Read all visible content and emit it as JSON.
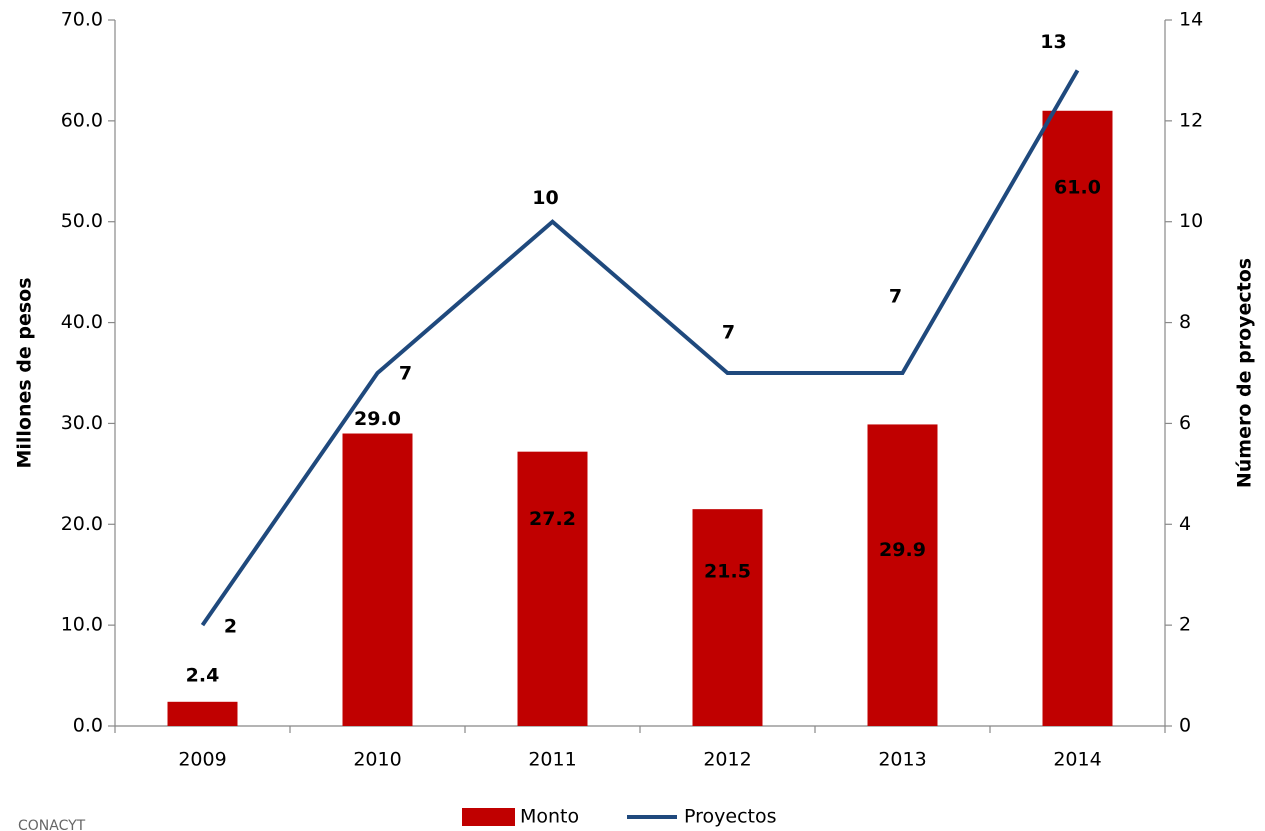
{
  "chart_data": {
    "type": "bar_line",
    "categories": [
      "2009",
      "2010",
      "2011",
      "2012",
      "2013",
      "2014"
    ],
    "series": [
      {
        "name": "Monto",
        "type": "bar",
        "color": "#c00000",
        "values": [
          2.4,
          29.0,
          27.2,
          21.5,
          29.9,
          61.0
        ],
        "value_labels": [
          "2.4",
          "29.0",
          "27.2",
          "21.5",
          "29.9",
          "61.0"
        ]
      },
      {
        "name": "Proyectos",
        "type": "line",
        "axis": "y2",
        "color": "#1f497d",
        "values": [
          2,
          7,
          10,
          7,
          7,
          13
        ]
      }
    ],
    "ylabel": "Millones de pesos",
    "y2label": "Número de proyectos",
    "ylim": [
      0,
      70
    ],
    "yticks": [
      {
        "value": 0,
        "label": "0.0"
      },
      {
        "value": 10,
        "label": "10.0"
      },
      {
        "value": 20,
        "label": "20.0"
      },
      {
        "value": 30,
        "label": "30.0"
      },
      {
        "value": 40,
        "label": "40.0"
      },
      {
        "value": 50,
        "label": "50.0"
      },
      {
        "value": 60,
        "label": "60.0"
      },
      {
        "value": 70,
        "label": "70.0"
      }
    ],
    "y2lim": [
      0,
      14
    ],
    "y2ticks": [
      0,
      2,
      4,
      6,
      8,
      10,
      12,
      14
    ],
    "legend": "bottom",
    "source": "CONACYT"
  }
}
